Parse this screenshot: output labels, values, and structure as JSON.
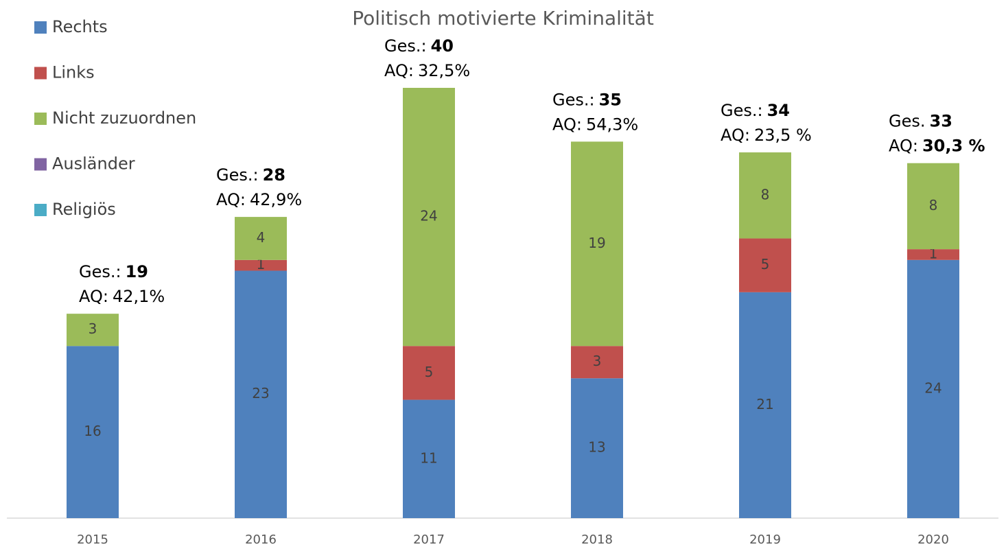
{
  "chart_data": {
    "type": "stacked_bar",
    "title": "Politisch motivierte Kriminalität",
    "categories": [
      "2015",
      "2016",
      "2017",
      "2018",
      "2019",
      "2020"
    ],
    "series": [
      {
        "name": "Rechts",
        "color": "#4f81bd",
        "values": [
          16,
          23,
          11,
          13,
          21,
          24
        ]
      },
      {
        "name": "Links",
        "color": "#c0504d",
        "values": [
          0,
          1,
          5,
          3,
          5,
          1
        ]
      },
      {
        "name": "Nicht zuzuordnen",
        "color": "#9bbb59",
        "values": [
          3,
          4,
          24,
          19,
          8,
          8
        ]
      },
      {
        "name": "Ausländer",
        "color": "#8064a2",
        "values": [
          0,
          0,
          0,
          0,
          0,
          0
        ]
      },
      {
        "name": "Religiös",
        "color": "#4bacc6",
        "values": [
          0,
          0,
          0,
          0,
          0,
          0
        ]
      }
    ],
    "ylim": [
      0,
      40
    ],
    "legend": "top-left",
    "annotations": [
      {
        "prefix": "Ges.:",
        "total": 19,
        "aq_prefix": "AQ:",
        "aq": "42,1%",
        "aq_bold": false
      },
      {
        "prefix": "Ges.:",
        "total": 28,
        "aq_prefix": "AQ:",
        "aq": "42,9%",
        "aq_bold": false
      },
      {
        "prefix": "Ges.:",
        "total": 40,
        "aq_prefix": "AQ:",
        "aq": "32,5%",
        "aq_bold": false
      },
      {
        "prefix": "Ges.:",
        "total": 35,
        "aq_prefix": "AQ:",
        "aq": "54,3%",
        "aq_bold": false
      },
      {
        "prefix": "Ges.:",
        "total": 34,
        "aq_prefix": "AQ:",
        "aq": "23,5 %",
        "aq_bold": false
      },
      {
        "prefix": "Ges.",
        "total": 33,
        "aq_prefix": "AQ:",
        "aq": "30,3 %",
        "aq_bold": true
      }
    ]
  }
}
